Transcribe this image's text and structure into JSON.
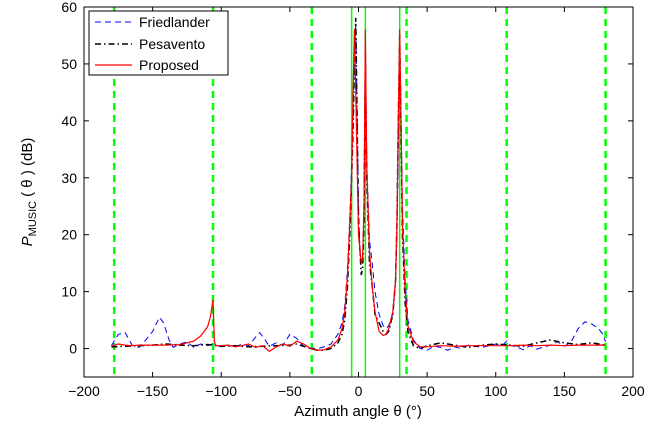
{
  "chart_data": {
    "type": "line",
    "xlabel": "Azimuth angle θ (°)",
    "ylabel": {
      "main": "P",
      "sub": "MUSIC",
      "rest": "( θ ) (dB)"
    },
    "xlim": [
      -200,
      200
    ],
    "ylim": [
      -5,
      60
    ],
    "xticks": [
      -200,
      -150,
      -100,
      -50,
      0,
      50,
      100,
      150,
      200
    ],
    "yticks": [
      0,
      10,
      20,
      30,
      40,
      50,
      60
    ],
    "xtick_labels": [
      "−200",
      "−150",
      "−100",
      "−50",
      "0",
      "50",
      "100",
      "150",
      "200"
    ],
    "ytick_labels": [
      "0",
      "10",
      "20",
      "30",
      "40",
      "50",
      "60"
    ],
    "grid": false,
    "legend_position": "top-left",
    "series": [
      {
        "name": "Friedlander",
        "color": "#0000ff",
        "style": "dashed",
        "x": [
          -180,
          -175,
          -170,
          -165,
          -160,
          -155,
          -150,
          -145,
          -142,
          -138,
          -135,
          -130,
          -125,
          -120,
          -115,
          -110,
          -106,
          -100,
          -95,
          -90,
          -85,
          -80,
          -75,
          -72,
          -68,
          -65,
          -60,
          -55,
          -50,
          -45,
          -40,
          -35,
          -30,
          -25,
          -20,
          -15,
          -12,
          -10,
          -8,
          -6,
          -4,
          -3,
          -2,
          0,
          1,
          2,
          3,
          4,
          5,
          6,
          8,
          10,
          12,
          15,
          18,
          20,
          22,
          25,
          27,
          28,
          29,
          30,
          31,
          32,
          34,
          36,
          40,
          45,
          50,
          55,
          60,
          65,
          70,
          75,
          80,
          85,
          90,
          95,
          100,
          105,
          108,
          110,
          115,
          120,
          125,
          130,
          135,
          140,
          145,
          150,
          155,
          160,
          165,
          170,
          175,
          178,
          180
        ],
        "y": [
          0.5,
          2.5,
          2.8,
          0.6,
          0.2,
          1.5,
          3,
          5.5,
          4.5,
          1.5,
          0.2,
          0.8,
          1.2,
          0.2,
          0.8,
          0.5,
          0.8,
          0.3,
          0.6,
          0.2,
          0.8,
          0.5,
          2.0,
          2.8,
          1.5,
          0.4,
          1.0,
          0.6,
          2.5,
          1.8,
          0.4,
          0.1,
          0.0,
          0.3,
          0.8,
          2.5,
          4.5,
          7.5,
          14,
          25,
          40,
          52,
          57,
          25,
          17,
          15,
          16,
          25,
          55,
          33,
          19,
          15,
          10,
          6,
          4,
          3.5,
          4,
          6,
          12,
          20,
          35,
          50,
          40,
          25,
          12,
          5,
          1.5,
          0.0,
          -0.3,
          0.4,
          0.2,
          -0.3,
          0.3,
          0.0,
          0.6,
          0.4,
          0.2,
          0.5,
          0.8,
          0.6,
          1.3,
          0.6,
          0.3,
          -0.2,
          0.5,
          -0.1,
          0.3,
          0.6,
          1.2,
          0.4,
          1.2,
          3.5,
          4.7,
          4.3,
          3.5,
          2.5,
          1.2
        ]
      },
      {
        "name": "Pesavento",
        "color": "#000000",
        "style": "dashdot",
        "x": [
          -180,
          -170,
          -160,
          -150,
          -140,
          -130,
          -120,
          -110,
          -106,
          -100,
          -90,
          -80,
          -70,
          -60,
          -50,
          -45,
          -40,
          -35,
          -30,
          -25,
          -20,
          -15,
          -12,
          -10,
          -8,
          -6,
          -4,
          -3,
          -2,
          0,
          2,
          3,
          4,
          5,
          6,
          8,
          10,
          12,
          15,
          18,
          20,
          22,
          25,
          27,
          28,
          29,
          30,
          31,
          32,
          34,
          36,
          40,
          45,
          50,
          60,
          70,
          80,
          90,
          100,
          110,
          120,
          130,
          140,
          150,
          160,
          170,
          180
        ],
        "y": [
          0.3,
          0.4,
          0.5,
          0.6,
          0.8,
          0.6,
          0.5,
          0.7,
          0.6,
          0.4,
          0.5,
          0.3,
          0.4,
          0.5,
          0.6,
          0.8,
          0.4,
          0.0,
          -0.3,
          -0.3,
          0.0,
          1.0,
          2.5,
          5,
          11,
          22,
          38,
          50,
          58,
          22,
          13,
          14,
          22,
          50,
          30,
          15,
          11,
          6,
          4.5,
          3,
          2.5,
          3,
          6,
          12,
          22,
          40,
          55,
          38,
          20,
          8,
          3,
          0.5,
          0.0,
          0.5,
          1.0,
          0.6,
          0.2,
          0.6,
          0.8,
          0.6,
          0.4,
          1.0,
          1.5,
          1.0,
          0.7,
          1.0,
          0.6
        ]
      },
      {
        "name": "Proposed",
        "color": "#ff0000",
        "style": "solid",
        "x": [
          -180,
          -175,
          -170,
          -165,
          -160,
          -150,
          -140,
          -130,
          -120,
          -115,
          -110,
          -108,
          -107,
          -106,
          -105,
          -104,
          -100,
          -95,
          -90,
          -85,
          -80,
          -75,
          -70,
          -65,
          -60,
          -55,
          -50,
          -45,
          -40,
          -35,
          -30,
          -25,
          -20,
          -15,
          -12,
          -10,
          -8,
          -6,
          -5,
          -4,
          -3,
          -2,
          0,
          2,
          3,
          4,
          5,
          6,
          8,
          10,
          12,
          15,
          18,
          20,
          22,
          25,
          27,
          28,
          29,
          30,
          31,
          32,
          34,
          36,
          40,
          45,
          50,
          60,
          70,
          80,
          90,
          100,
          110,
          120,
          130,
          140,
          150,
          160,
          170,
          180
        ],
        "y": [
          0.4,
          0.8,
          0.6,
          0.5,
          0.6,
          0.6,
          0.6,
          0.7,
          1.3,
          2.2,
          3.8,
          5.5,
          7.0,
          8.5,
          1.2,
          0.5,
          0.5,
          0.6,
          0.3,
          0.5,
          0.8,
          0.2,
          0.5,
          -0.5,
          0.3,
          0.8,
          0.4,
          1.3,
          0.8,
          0.0,
          -0.3,
          -0.2,
          0.3,
          1.5,
          3.5,
          6.5,
          13,
          24,
          30,
          45,
          56,
          45,
          20,
          15,
          16,
          25,
          56,
          32,
          17,
          11,
          6.5,
          3,
          2.3,
          2.5,
          3.5,
          6.5,
          12,
          22,
          40,
          56,
          40,
          22,
          10,
          4,
          1.2,
          0.3,
          0.3,
          0.5,
          0.4,
          0.5,
          0.5,
          0.5,
          0.5,
          0.6,
          0.5,
          0.6,
          0.5,
          0.6,
          0.6,
          0.6
        ]
      }
    ],
    "reference_lines": {
      "dashed_color": "#00ff00",
      "solid_color": "#00ff00",
      "dashed_x": [
        -178,
        -106,
        -34,
        35,
        108,
        180
      ],
      "solid_x": [
        -5,
        5,
        30
      ]
    }
  }
}
